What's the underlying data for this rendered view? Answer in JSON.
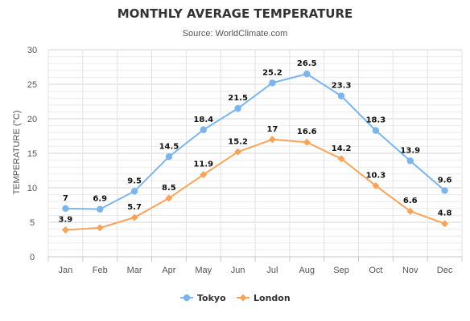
{
  "chart_data": {
    "type": "line",
    "title": "MONTHLY AVERAGE TEMPERATURE",
    "subtitle": "Source: WorldClimate.com",
    "xlabel": "",
    "ylabel": "TEMPERATURE (°C)",
    "ylim": [
      0,
      30
    ],
    "yticks": [
      "0",
      "5",
      "10",
      "15",
      "20",
      "25",
      "30"
    ],
    "categories": [
      "Jan",
      "Feb",
      "Mar",
      "Apr",
      "May",
      "Jun",
      "Jul",
      "Aug",
      "Sep",
      "Oct",
      "Nov",
      "Dec"
    ],
    "grid": true,
    "legend_position": "bottom",
    "series": [
      {
        "name": "Tokyo",
        "color": "#7cb5ec",
        "marker": "circle",
        "values": [
          7,
          6.9,
          9.5,
          14.5,
          18.4,
          21.5,
          25.2,
          26.5,
          23.3,
          18.3,
          13.9,
          9.6
        ],
        "labels": [
          "7",
          "6.9",
          "9.5",
          "14.5",
          "18.4",
          "21.5",
          "25.2",
          "26.5",
          "23.3",
          "18.3",
          "13.9",
          "9.6"
        ]
      },
      {
        "name": "London",
        "color": "#f7a35c",
        "marker": "diamond",
        "values": [
          3.9,
          4.2,
          5.7,
          8.5,
          11.9,
          15.2,
          17,
          16.6,
          14.2,
          10.3,
          6.6,
          4.8
        ],
        "labels": [
          "3.9",
          "",
          "5.7",
          "8.5",
          "11.9",
          "15.2",
          "17",
          "16.6",
          "14.2",
          "10.3",
          "6.6",
          "4.8"
        ]
      }
    ]
  }
}
